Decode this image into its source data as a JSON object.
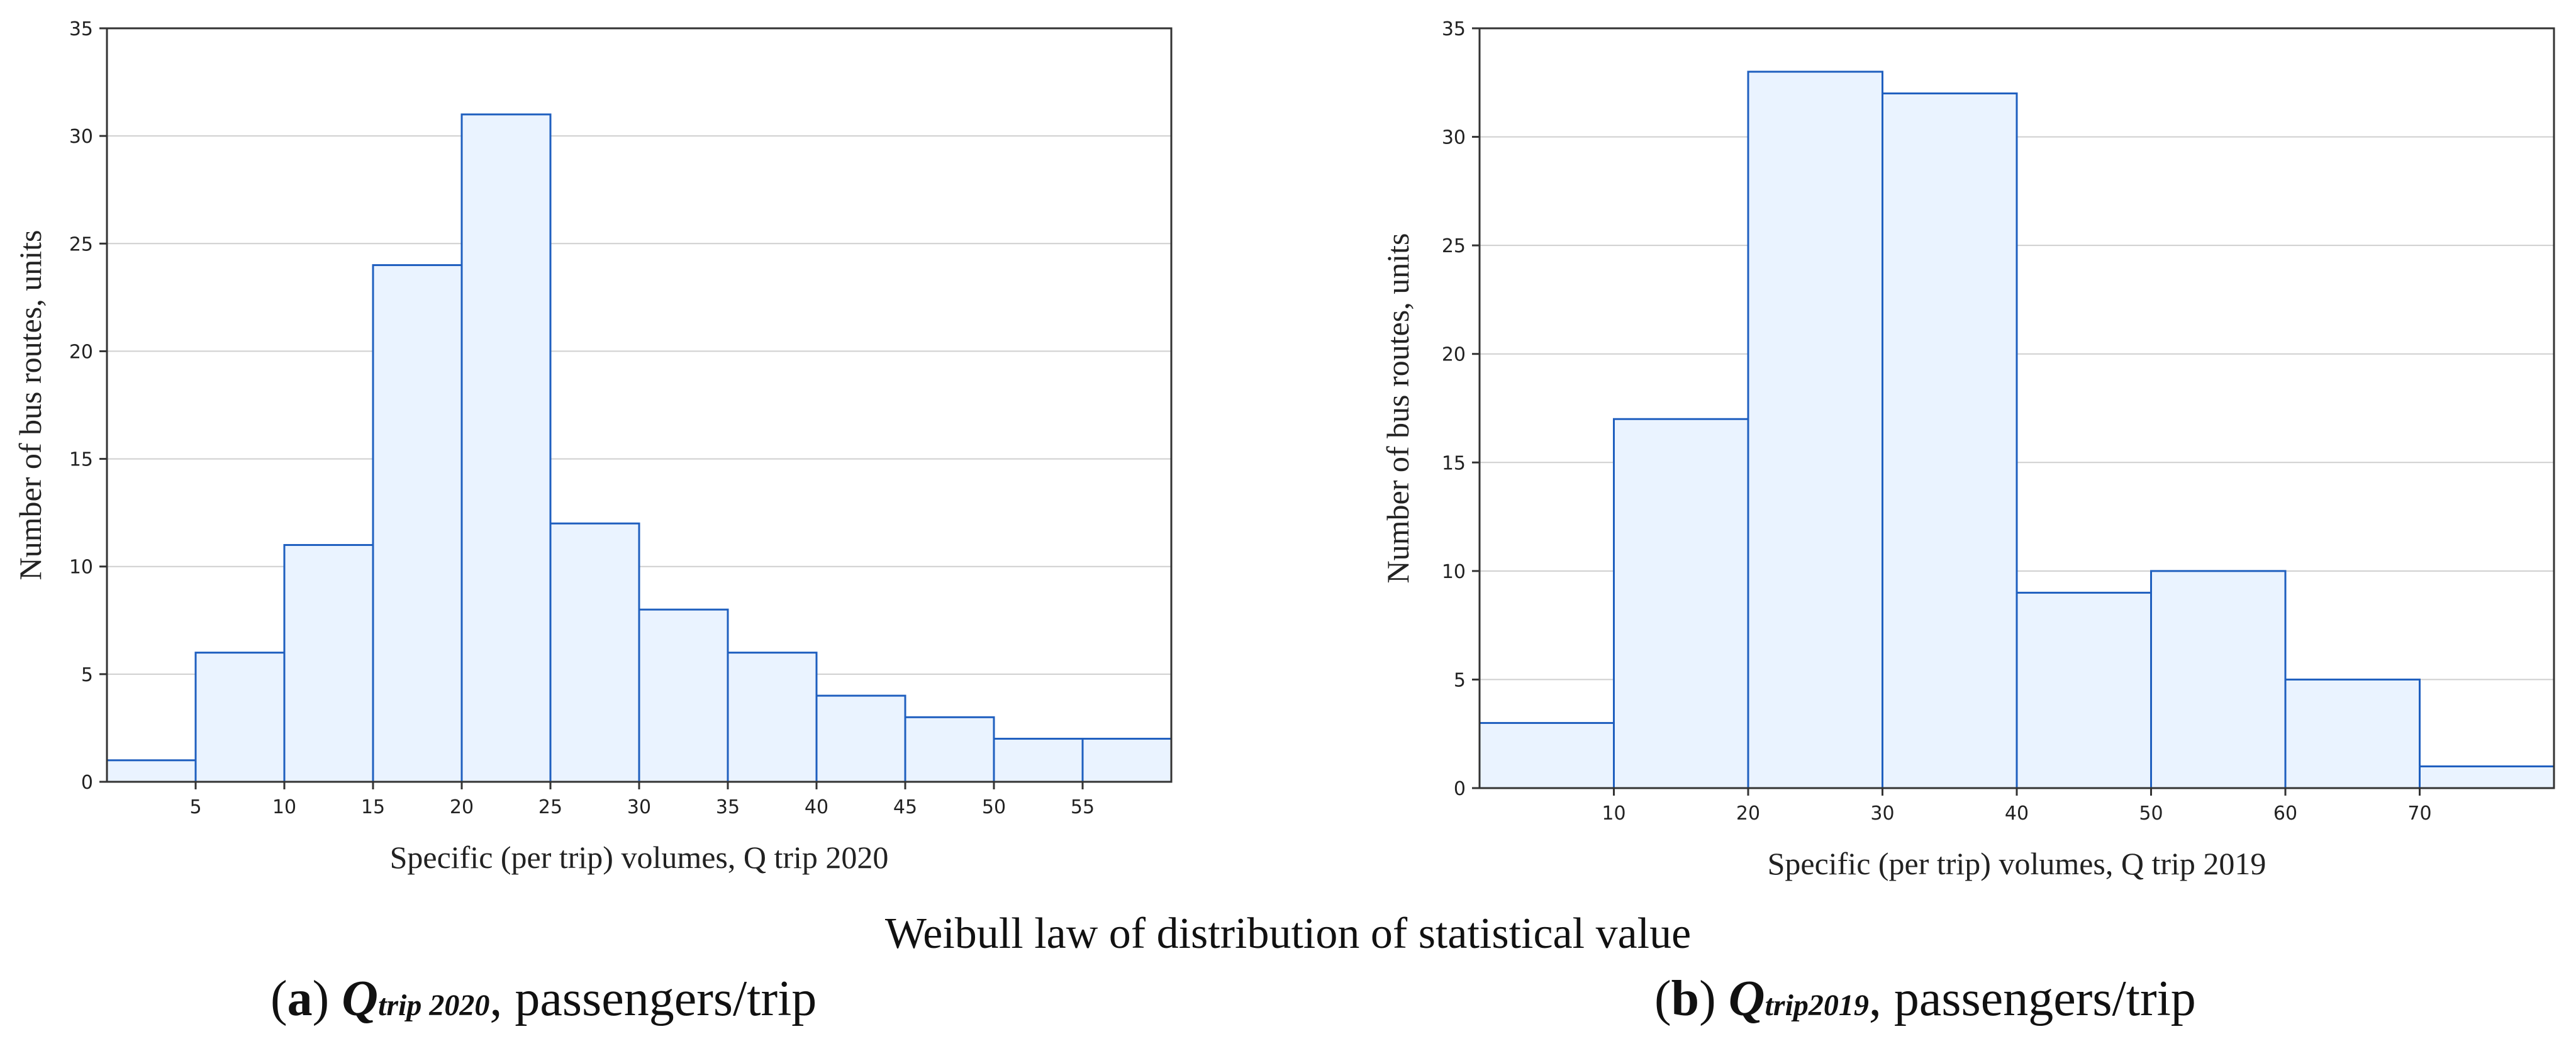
{
  "figure_caption": "Weibull law of distribution of statistical value",
  "subcaptions": [
    {
      "label_letter": "a",
      "symbol": "Q",
      "subscript": "trip 2020",
      "suffix": ", passengers/trip"
    },
    {
      "label_letter": "b",
      "symbol": "Q",
      "subscript": "trip2019",
      "suffix": ", passengers/trip"
    }
  ],
  "colors": {
    "bar_top": "#1a88ff",
    "bar_bottom": "#eaf3ff",
    "bar_stroke": "#1f5fbf",
    "grid": "#cfcfcf",
    "axis": "#333333"
  },
  "chart_data": [
    {
      "type": "bar",
      "histogram": true,
      "bin_edges": [
        0,
        5,
        10,
        15,
        20,
        25,
        30,
        35,
        40,
        45,
        50,
        55,
        60
      ],
      "values": [
        1,
        6,
        11,
        24,
        31,
        12,
        8,
        6,
        4,
        3,
        2,
        2
      ],
      "xticks": [
        5,
        10,
        15,
        20,
        25,
        30,
        35,
        40,
        45,
        50,
        55
      ],
      "yticks": [
        0,
        5,
        10,
        15,
        20,
        25,
        30,
        35
      ],
      "xlim": [
        0,
        60
      ],
      "ylim": [
        0,
        35
      ],
      "xlabel": "Specific (per trip) volumes, Q trip 2020",
      "ylabel": "Number of bus routes, units",
      "grid": true
    },
    {
      "type": "bar",
      "histogram": true,
      "bin_edges": [
        0,
        10,
        20,
        30,
        40,
        50,
        60,
        70,
        80
      ],
      "values": [
        3,
        17,
        33,
        32,
        9,
        10,
        5,
        1
      ],
      "xticks": [
        10,
        20,
        30,
        40,
        50,
        60,
        70
      ],
      "yticks": [
        0,
        5,
        10,
        15,
        20,
        25,
        30,
        35
      ],
      "xlim": [
        0,
        80
      ],
      "ylim": [
        0,
        35
      ],
      "xlabel": "Specific (per trip) volumes, Q trip 2019",
      "ylabel": "Number of bus routes, units",
      "grid": true
    }
  ]
}
